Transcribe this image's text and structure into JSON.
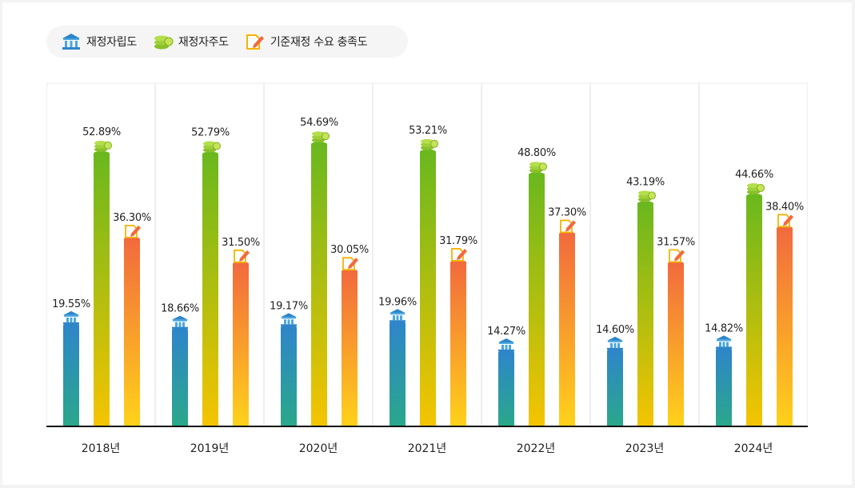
{
  "colors": {
    "independence_top": "#2e86c9",
    "independence_bottom": "#2aa88a",
    "autonomy_top": "#6ab81e",
    "autonomy_bottom": "#f5c400",
    "fulfillment_top": "#f26a3d",
    "fulfillment_bottom": "#ffd21a",
    "baseline": "#111111",
    "label": "#222222"
  },
  "legend": [
    {
      "label": "재정자립도",
      "icon": "bank-icon"
    },
    {
      "label": "재정자주도",
      "icon": "coin-stack-icon"
    },
    {
      "label": "기준재정 수요 충족도",
      "icon": "document-pen-icon"
    }
  ],
  "chart_data": {
    "type": "bar",
    "categories": [
      "2018년",
      "2019년",
      "2020년",
      "2021년",
      "2022년",
      "2023년",
      "2024년"
    ],
    "series": [
      {
        "name": "재정자립도",
        "values": [
          19.55,
          18.66,
          19.17,
          19.96,
          14.27,
          14.6,
          14.82
        ],
        "labels": [
          "19.55%",
          "18.66%",
          "19.17%",
          "19.96%",
          "14.27%",
          "14.60%",
          "14.82%"
        ]
      },
      {
        "name": "재정자주도",
        "values": [
          52.89,
          52.79,
          54.69,
          53.21,
          48.8,
          43.19,
          44.66
        ],
        "labels": [
          "52.89%",
          "52.79%",
          "54.69%",
          "53.21%",
          "48.80%",
          "43.19%",
          "44.66%"
        ]
      },
      {
        "name": "기준재정 수요 충족도",
        "values": [
          36.3,
          31.5,
          30.05,
          31.79,
          37.3,
          31.57,
          38.4
        ],
        "labels": [
          "36.30%",
          "31.50%",
          "30.05%",
          "31.79%",
          "37.30%",
          "31.57%",
          "38.40%"
        ]
      }
    ],
    "ylim": [
      0,
      60
    ],
    "legend_position": "top-left"
  }
}
